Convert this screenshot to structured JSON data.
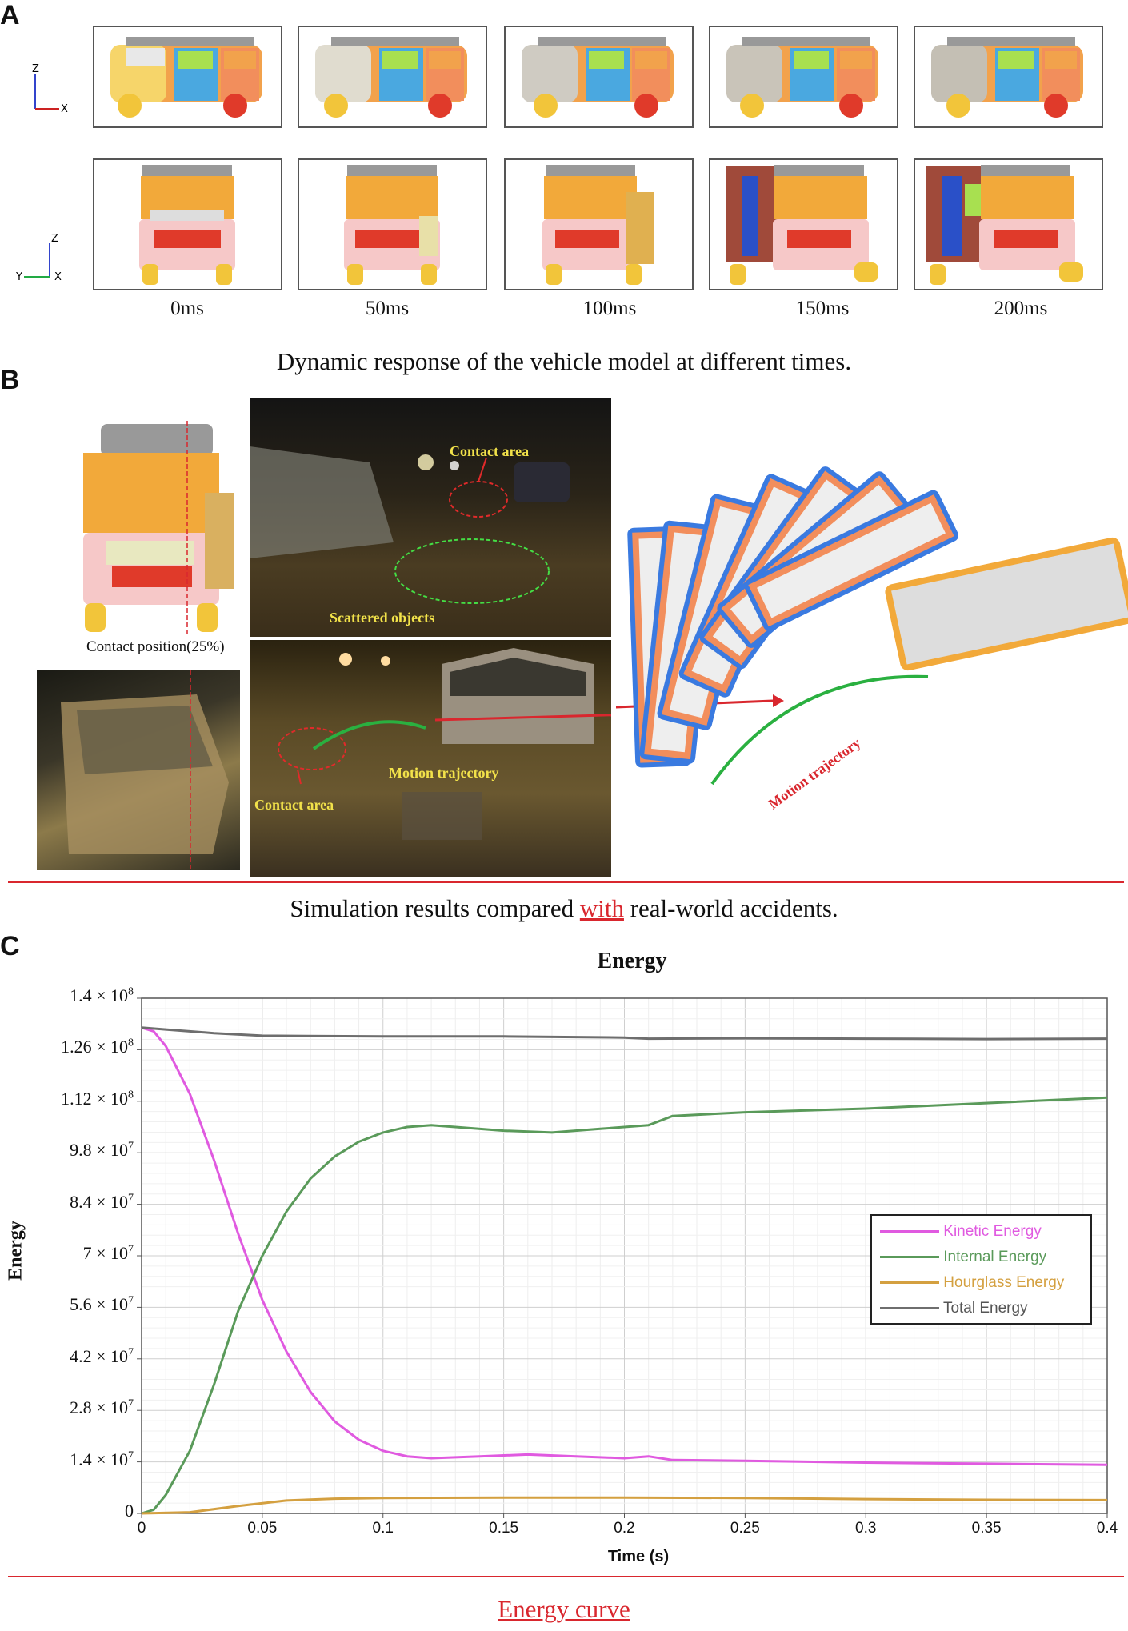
{
  "panels": {
    "a": "A",
    "b": "B",
    "c": "C"
  },
  "panel_a": {
    "times": [
      "0ms",
      "50ms",
      "100ms",
      "150ms",
      "200ms"
    ],
    "side_axes": {
      "z": "Z",
      "x": "X"
    },
    "front_axes": {
      "z": "Z",
      "y": "Y",
      "x": "X"
    },
    "caption": "Dynamic response of the vehicle model at different times."
  },
  "panel_b": {
    "contact_position": "Contact position(25%)",
    "contact_area_top": "Contact area",
    "scattered_objects": "Scattered objects",
    "motion_trajectory_photo": "Motion trajectory",
    "contact_area_bottom": "Contact area",
    "motion_trajectory_sim": "Motion trajectory",
    "caption_pre": "Simulation results compared ",
    "caption_hl": "with",
    "caption_post": " real-world accidents."
  },
  "caption_c": "Energy curve",
  "colors": {
    "kinetic": "#e05ae0",
    "internal": "#5a9a5a",
    "hourglass": "#d4a040",
    "total": "#6e6e6e",
    "accent_red": "#d9272e"
  },
  "chart_data": {
    "type": "line",
    "title": "Energy",
    "xlabel": "Time (s)",
    "ylabel": "Energy",
    "xlim": [
      0,
      0.4
    ],
    "ylim": [
      0,
      140000000
    ],
    "xticks": [
      "0",
      "0.05",
      "0.1",
      "0.15",
      "0.2",
      "0.25",
      "0.3",
      "0.35",
      "0.4"
    ],
    "yticks": [
      {
        "m": "1.4",
        "e": "8"
      },
      {
        "m": "1.26",
        "e": "8"
      },
      {
        "m": "1.12",
        "e": "8"
      },
      {
        "m": "9.8",
        "e": "7"
      },
      {
        "m": "8.4",
        "e": "7"
      },
      {
        "m": "7",
        "e": "7"
      },
      {
        "m": "5.6",
        "e": "7"
      },
      {
        "m": "4.2",
        "e": "7"
      },
      {
        "m": "2.8",
        "e": "7"
      },
      {
        "m": "1.4",
        "e": "7"
      },
      {
        "m": "0",
        "e": ""
      }
    ],
    "series": [
      {
        "name": "Kinetic Energy",
        "x": [
          0,
          0.005,
          0.01,
          0.02,
          0.03,
          0.04,
          0.05,
          0.06,
          0.07,
          0.08,
          0.09,
          0.1,
          0.11,
          0.12,
          0.14,
          0.16,
          0.18,
          0.2,
          0.21,
          0.22,
          0.25,
          0.3,
          0.35,
          0.4
        ],
        "y": [
          132000000,
          131000000,
          127000000,
          114000000,
          96000000,
          76000000,
          58000000,
          44000000,
          33000000,
          25000000,
          20000000,
          17000000,
          15500000,
          15000000,
          15500000,
          16000000,
          15500000,
          15000000,
          15500000,
          14500000,
          14300000,
          13800000,
          13500000,
          13200000
        ]
      },
      {
        "name": "Internal Energy",
        "x": [
          0,
          0.005,
          0.01,
          0.02,
          0.03,
          0.04,
          0.05,
          0.06,
          0.07,
          0.08,
          0.09,
          0.1,
          0.11,
          0.12,
          0.13,
          0.15,
          0.17,
          0.19,
          0.21,
          0.22,
          0.25,
          0.3,
          0.35,
          0.4
        ],
        "y": [
          0,
          1000000,
          5000000,
          17000000,
          35000000,
          55000000,
          70000000,
          82000000,
          91000000,
          97000000,
          101000000,
          103500000,
          105000000,
          105500000,
          105000000,
          104000000,
          103500000,
          104500000,
          105500000,
          108000000,
          109000000,
          110000000,
          111500000,
          113000000
        ]
      },
      {
        "name": "Hourglass Energy",
        "x": [
          0,
          0.02,
          0.04,
          0.06,
          0.08,
          0.1,
          0.15,
          0.2,
          0.25,
          0.3,
          0.35,
          0.4
        ],
        "y": [
          0,
          300000,
          2000000,
          3500000,
          4000000,
          4200000,
          4300000,
          4300000,
          4200000,
          3900000,
          3700000,
          3600000
        ]
      },
      {
        "name": "Total Energy",
        "x": [
          0,
          0.01,
          0.03,
          0.05,
          0.1,
          0.15,
          0.2,
          0.21,
          0.25,
          0.3,
          0.35,
          0.4
        ],
        "y": [
          132000000,
          131500000,
          130500000,
          129800000,
          129600000,
          129600000,
          129300000,
          129000000,
          129100000,
          129000000,
          128900000,
          129000000
        ]
      }
    ],
    "legend_position": "right",
    "grid": true
  }
}
